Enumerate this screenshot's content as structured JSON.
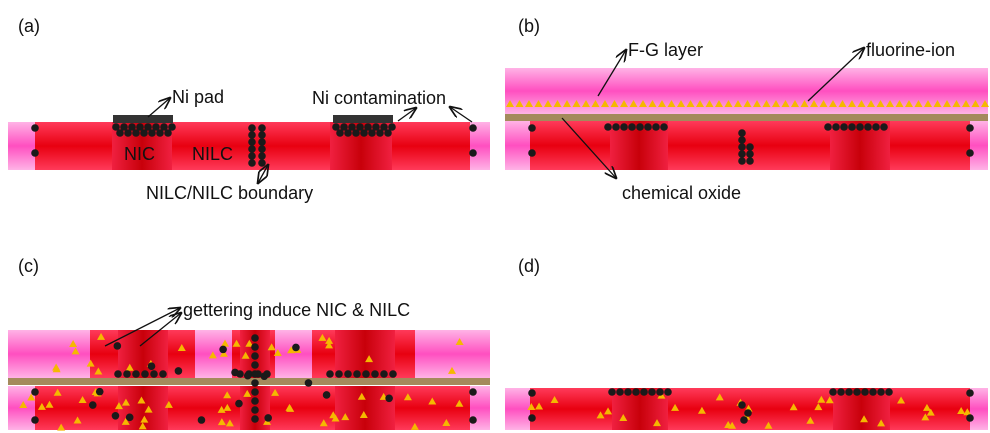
{
  "panels": [
    {
      "label": "(a)",
      "annotations": [
        "Ni pad",
        "Ni contamination",
        "NIC",
        "NILC",
        "NILC/NILC boundary"
      ]
    },
    {
      "label": "(b)",
      "annotations": [
        "F-G layer",
        "fluorine-ion",
        "chemical oxide"
      ]
    },
    {
      "label": "(c)",
      "annotations": [
        "gettering induce NIC & NILC"
      ]
    },
    {
      "label": "(d)"
    }
  ]
}
